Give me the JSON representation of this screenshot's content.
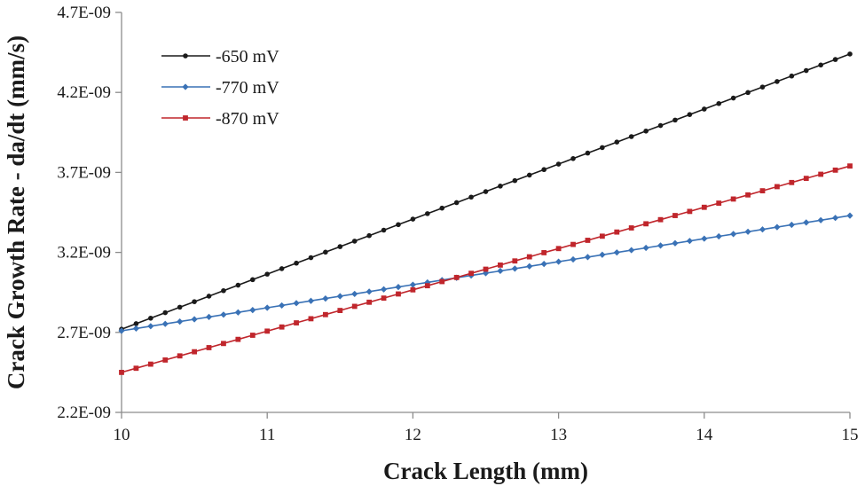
{
  "chart_data": {
    "type": "line",
    "title": "",
    "xlabel": "Crack Length (mm)",
    "ylabel": "Crack Growth Rate - da/dt (mm/s)",
    "xlim": [
      10,
      15
    ],
    "ylim": [
      2.2e-09,
      4.7e-09
    ],
    "x_ticks": [
      10,
      11,
      12,
      13,
      14,
      15
    ],
    "x_tick_labels": [
      "10",
      "11",
      "12",
      "13",
      "14",
      "15"
    ],
    "y_ticks": [
      2.2e-09,
      2.7e-09,
      3.2e-09,
      3.7e-09,
      4.2e-09,
      4.7e-09
    ],
    "y_tick_labels": [
      "2.2E-09",
      "2.7E-09",
      "3.2E-09",
      "3.7E-09",
      "4.2E-09",
      "4.7E-09"
    ],
    "grid": false,
    "legend_position": "top-left",
    "x_start": 10,
    "x_step": 0.1,
    "n_points": 51,
    "series": [
      {
        "name": "-650 mV",
        "color": "#1a1a1a",
        "marker": "circle",
        "start": 2.72e-09,
        "end": 4.44e-09
      },
      {
        "name": "-770 mV",
        "color": "#3a72b6",
        "marker": "diamond",
        "start": 2.71e-09,
        "end": 3.43e-09
      },
      {
        "name": "-870 mV",
        "color": "#c0262c",
        "marker": "square",
        "start": 2.45e-09,
        "end": 3.74e-09
      }
    ]
  }
}
